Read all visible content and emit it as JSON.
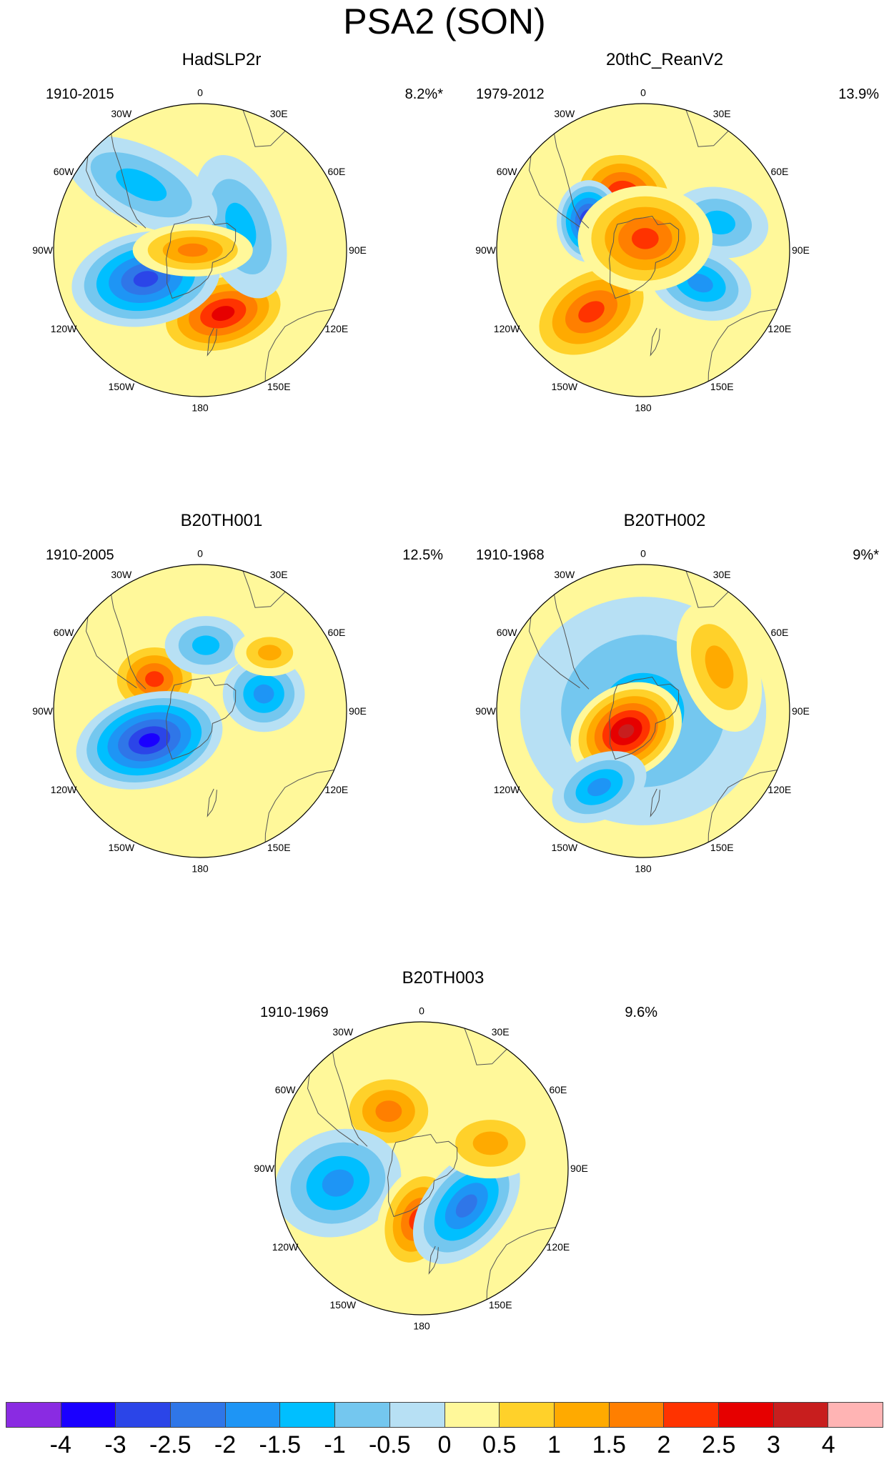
{
  "title": "PSA2 (SON)",
  "colors": {
    "levels": [
      "#8a2be2",
      "#1a00ff",
      "#2b45e8",
      "#2f76e8",
      "#1e95f5",
      "#00bfff",
      "#74c7ef",
      "#b7e0f4",
      "#fff89a",
      "#ffd12a",
      "#ffaa00",
      "#ff7f00",
      "#ff3300",
      "#e60000",
      "#c81e1e",
      "#ffb4b4"
    ],
    "coast": "#555555"
  },
  "colorbar": {
    "labels": [
      "-4",
      "-3",
      "-2.5",
      "-2",
      "-1.5",
      "-1",
      "-0.5",
      "0",
      "0.5",
      "1",
      "1.5",
      "2",
      "2.5",
      "3",
      "4"
    ]
  },
  "longitude_labels": [
    "0",
    "30E",
    "60E",
    "90E",
    "120E",
    "150E",
    "180",
    "150W",
    "120W",
    "90W",
    "60W",
    "30W"
  ],
  "panels": [
    {
      "name": "HadSLP2r",
      "period": "1910-2015",
      "variance": "8.2%*",
      "anomalies": [
        {
          "shape": "blob",
          "lon": 160,
          "dist": 0.46,
          "a": 0.42,
          "b": 0.23,
          "angle": -15,
          "value": 2.3
        },
        {
          "shape": "blob",
          "lon": 60,
          "dist": 0.32,
          "a": 0.45,
          "b": 0.22,
          "angle": 70,
          "value": -1.0
        },
        {
          "shape": "blob",
          "lon": -42,
          "dist": 0.6,
          "a": 0.5,
          "b": 0.2,
          "angle": 25,
          "value": -1.2
        },
        {
          "shape": "blob",
          "lon": -118,
          "dist": 0.42,
          "a": 0.45,
          "b": 0.26,
          "angle": -10,
          "value": -2.4
        },
        {
          "shape": "blob",
          "lon": -90,
          "dist": 0.05,
          "a": 0.35,
          "b": 0.12,
          "angle": 0,
          "value": 1.6
        }
      ]
    },
    {
      "name": "20thC_ReanV2",
      "period": "1979-2012",
      "variance": "13.9%",
      "anomalies": [
        {
          "shape": "blob",
          "lon": -20,
          "dist": 0.38,
          "a": 0.32,
          "b": 0.28,
          "angle": 30,
          "value": 2.7
        },
        {
          "shape": "blob",
          "lon": 70,
          "dist": 0.55,
          "a": 0.28,
          "b": 0.18,
          "angle": 10,
          "value": -1.2
        },
        {
          "shape": "blob",
          "lon": -62,
          "dist": 0.42,
          "a": 0.22,
          "b": 0.16,
          "angle": 90,
          "value": -3.0
        },
        {
          "shape": "blob",
          "lon": -140,
          "dist": 0.55,
          "a": 0.42,
          "b": 0.26,
          "angle": -30,
          "value": 1.8
        },
        {
          "shape": "blob",
          "lon": 120,
          "dist": 0.45,
          "a": 0.3,
          "b": 0.18,
          "angle": 20,
          "value": -1.4
        },
        {
          "shape": "blob",
          "lon": 10,
          "dist": 0.08,
          "a": 0.4,
          "b": 0.3,
          "angle": 0,
          "value": 1.8
        }
      ]
    },
    {
      "name": "B20TH001",
      "period": "1910-2005",
      "variance": "12.5%",
      "anomalies": [
        {
          "shape": "blob",
          "lon": -55,
          "dist": 0.38,
          "a": 0.26,
          "b": 0.21,
          "angle": 0,
          "value": 2.2
        },
        {
          "shape": "blob",
          "lon": -120,
          "dist": 0.4,
          "a": 0.45,
          "b": 0.26,
          "angle": -15,
          "value": -3.0
        },
        {
          "shape": "blob",
          "lon": 75,
          "dist": 0.45,
          "a": 0.22,
          "b": 0.2,
          "angle": 0,
          "value": -1.3
        },
        {
          "shape": "blob",
          "lon": 5,
          "dist": 0.45,
          "a": 0.22,
          "b": 0.14,
          "angle": 0,
          "value": -1.2
        },
        {
          "shape": "blob",
          "lon": 50,
          "dist": 0.62,
          "a": 0.18,
          "b": 0.1,
          "angle": 0,
          "value": 0.9
        }
      ]
    },
    {
      "name": "B20TH002",
      "period": "1910-1968",
      "variance": "9%*",
      "anomalies": [
        {
          "shape": "blob",
          "lon": 0,
          "dist": 0.0,
          "a": 0.78,
          "b": 0.72,
          "angle": 0,
          "value": -0.9
        },
        {
          "shape": "blob",
          "lon": -140,
          "dist": 0.18,
          "a": 0.34,
          "b": 0.25,
          "angle": -30,
          "value": 2.8
        },
        {
          "shape": "blob",
          "lon": -150,
          "dist": 0.6,
          "a": 0.28,
          "b": 0.16,
          "angle": -25,
          "value": -1.4
        },
        {
          "shape": "blob",
          "lon": 60,
          "dist": 0.6,
          "a": 0.4,
          "b": 0.2,
          "angle": 70,
          "value": 0.9
        }
      ]
    },
    {
      "name": "B20TH003",
      "period": "1910-1969",
      "variance": "9.6%",
      "anomalies": [
        {
          "shape": "blob",
          "lon": -30,
          "dist": 0.45,
          "a": 0.3,
          "b": 0.23,
          "angle": 0,
          "value": 1.7
        },
        {
          "shape": "blob",
          "lon": -100,
          "dist": 0.58,
          "a": 0.38,
          "b": 0.3,
          "angle": -20,
          "value": -1.7
        },
        {
          "shape": "blob",
          "lon": -175,
          "dist": 0.35,
          "a": 0.32,
          "b": 0.2,
          "angle": -70,
          "value": 1.8
        },
        {
          "shape": "blob",
          "lon": 130,
          "dist": 0.4,
          "a": 0.4,
          "b": 0.22,
          "angle": -50,
          "value": -2.1
        },
        {
          "shape": "blob",
          "lon": 70,
          "dist": 0.5,
          "a": 0.3,
          "b": 0.18,
          "angle": 0,
          "value": 1.0
        }
      ]
    }
  ]
}
